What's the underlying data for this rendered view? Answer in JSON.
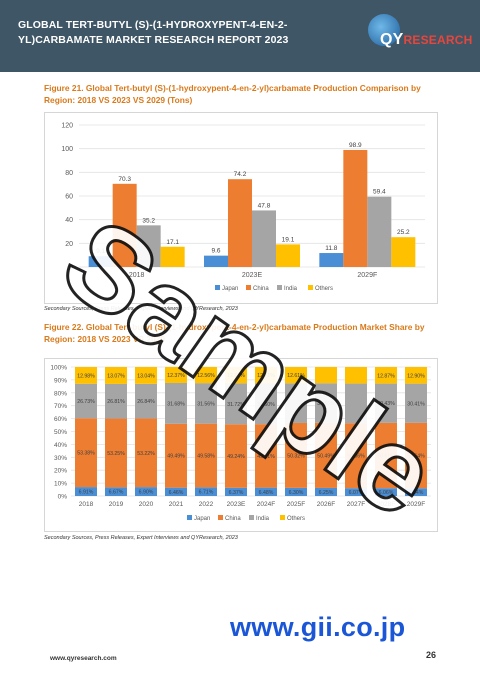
{
  "header": {
    "title": "GLOBAL TERT-BUTYL (S)-(1-HYDROXYPENT-4-EN-2-YL)CARBAMATE MARKET RESEARCH REPORT 2023",
    "logo_text": "QYRESEARCH",
    "logo_brand_letters": "QY",
    "logo_rest": "RESEARCH",
    "bg_color": "#3f5666"
  },
  "figure21": {
    "title": "Figure 21.   Global Tert-butyl (S)-(1-hydroxypent-4-en-2-yl)carbamate Production Comparison by Region: 2018 VS 2023 VS 2029 (Tons)",
    "source": "Secondary Sources, Press Releases, Expert Interviews and QYResearch, 2023"
  },
  "figure22": {
    "title": "Figure 22.   Global Tert-butyl (S)-(1-hydroxypent-4-en-2-yl)carbamate Production Market Share by Region: 2018 VS 2023 VS 2029",
    "source": "Secondary Sources, Press Releases, Expert Interviews and QYResearch, 2023"
  },
  "chart_data": [
    {
      "type": "bar",
      "categories": [
        "2018",
        "2023E",
        "2029F"
      ],
      "series": [
        {
          "name": "Japan",
          "values": [
            9.1,
            9.6,
            11.8
          ],
          "color": "#4a8fd6"
        },
        {
          "name": "China",
          "values": [
            70.3,
            74.2,
            98.9
          ],
          "color": "#ed7d31"
        },
        {
          "name": "India",
          "values": [
            35.2,
            47.8,
            59.4
          ],
          "color": "#a5a5a5"
        },
        {
          "name": "Others",
          "values": [
            17.1,
            19.1,
            25.2
          ],
          "color": "#ffc000"
        }
      ],
      "ylim": [
        0,
        120
      ],
      "yticks": [
        "0",
        "20",
        "40",
        "60",
        "80",
        "100",
        "120"
      ],
      "grid": true,
      "legend": "bottom"
    },
    {
      "type": "bar",
      "stacked": true,
      "categories": [
        "2018",
        "2019",
        "2020",
        "2021",
        "2022",
        "2023E",
        "2024F",
        "2025F",
        "2026F",
        "2027F",
        "2028F",
        "2029F"
      ],
      "series": [
        {
          "name": "Japan",
          "values": [
            6.91,
            6.67,
            6.9,
            6.46,
            6.71,
            6.37,
            6.48,
            6.3,
            6.25,
            6.07,
            6.06,
            6.04
          ],
          "labels": [
            "6.91%",
            "6.67%",
            "6.90%",
            "6.46%",
            "6.71%",
            "6.37%",
            "6.48%",
            "6.30%",
            "6.25%",
            "6.07%",
            "6.06%",
            "6.04%"
          ],
          "color": "#4a8fd6"
        },
        {
          "name": "China",
          "values": [
            53.38,
            53.25,
            53.22,
            49.49,
            49.58,
            49.24,
            49.21,
            50.32,
            50.49,
            50.36,
            50.61,
            50.64
          ],
          "labels": [
            "53.38%",
            "53.25%",
            "53.22%",
            "49.49%",
            "49.58%",
            "49.24%",
            "49.21%",
            "50.32%",
            "50.49%",
            "50.36%",
            "50.61%",
            "50.64%"
          ],
          "color": "#ed7d31"
        },
        {
          "name": "India",
          "values": [
            26.73,
            26.81,
            26.84,
            31.68,
            31.56,
            31.72,
            31.6,
            30.77,
            30.66,
            30.71,
            30.43,
            30.41
          ],
          "labels": [
            "26.73%",
            "26.81%",
            "26.84%",
            "31.68%",
            "31.56%",
            "31.72%",
            "31.60%",
            "",
            "30.66%",
            "",
            "30.43%",
            "30.41%"
          ],
          "color": "#a5a5a5"
        },
        {
          "name": "Others",
          "values": [
            12.98,
            13.07,
            13.04,
            12.37,
            12.56,
            12.67,
            12.71,
            12.61,
            12.6,
            12.86,
            12.87,
            12.9
          ],
          "labels": [
            "12.98%",
            "13.07%",
            "13.04%",
            "12.37%",
            "12.56%",
            "12.67%",
            "12.71%",
            "12.61%",
            "",
            "",
            "12.87%",
            "12.90%"
          ],
          "color": "#ffc000"
        }
      ],
      "ylim": [
        0,
        100
      ],
      "yticks": [
        "0%",
        "10%",
        "20%",
        "30%",
        "40%",
        "50%",
        "60%",
        "70%",
        "80%",
        "90%",
        "100%"
      ],
      "grid": true,
      "legend": "bottom"
    }
  ],
  "watermark": "Sample",
  "footer": {
    "url": "www.qyresearch.com",
    "page": "26",
    "gii": "www.gii.co.jp"
  }
}
